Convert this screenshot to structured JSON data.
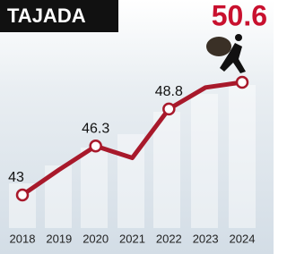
{
  "chart_data": {
    "type": "line",
    "title": "TAJADA",
    "categories": [
      "2018",
      "2019",
      "2020",
      "2021",
      "2022",
      "2023",
      "2024"
    ],
    "series": [
      {
        "color": "#a8192b",
        "values": [
          43,
          44.7,
          46.3,
          45.5,
          48.8,
          50.25,
          50.6
        ],
        "value_labels": [
          "43",
          null,
          "46.3",
          null,
          "48.8",
          null,
          null
        ],
        "markers": [
          true,
          false,
          true,
          false,
          true,
          false,
          true
        ]
      }
    ]
  }
}
